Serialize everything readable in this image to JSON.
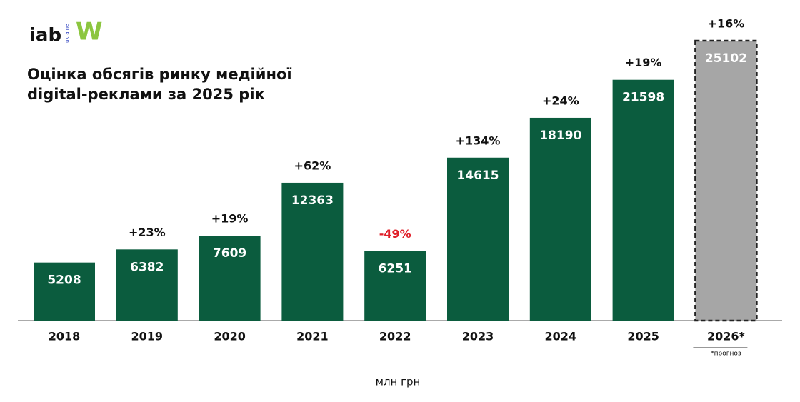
{
  "logo": {
    "iab": "iab",
    "ukraine": "ukraine",
    "w": "W"
  },
  "chart_data": {
    "type": "bar",
    "title": [
      "Оцінка обсягів ринку медійної",
      "digital-реклами за 2025 рік"
    ],
    "categories": [
      "2018",
      "2019",
      "2020",
      "2021",
      "2022",
      "2023",
      "2024",
      "2025",
      "2026*"
    ],
    "values": [
      5208,
      6382,
      7609,
      12363,
      6251,
      14615,
      18190,
      21598,
      25102
    ],
    "growth_labels": [
      null,
      "+23%",
      "+19%",
      "+62%",
      "-49%",
      "+134%",
      "+24%",
      "+19%",
      "+16%"
    ],
    "colors": [
      "#0b5c3e",
      "#0b5c3e",
      "#0b5c3e",
      "#0b5c3e",
      "#0b5c3e",
      "#0b5c3e",
      "#0b5c3e",
      "#0b5c3e",
      "#a6a6a6"
    ],
    "forecast": [
      false,
      false,
      false,
      false,
      false,
      false,
      false,
      false,
      true
    ],
    "footnote": "*прогноз",
    "unit_label": "млн грн"
  }
}
